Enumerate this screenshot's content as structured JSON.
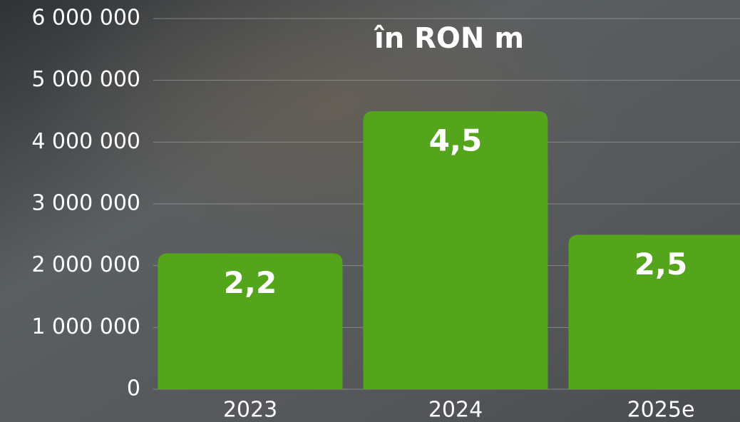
{
  "chart_data": {
    "type": "bar",
    "title": "în RON m",
    "categories": [
      "2023",
      "2024",
      "2025e"
    ],
    "values": [
      2200000,
      4500000,
      2500000
    ],
    "value_labels": [
      "2,2",
      "4,5",
      "2,5"
    ],
    "color": "#55a51c",
    "ylim": [
      0,
      6000000
    ],
    "yticks": [
      0,
      {
        "value": 1000000,
        "label": "1 000 000"
      },
      {
        "value": 2000000,
        "label": "2 000 000"
      },
      {
        "value": 3000000,
        "label": "3 000 000"
      },
      {
        "value": 4000000,
        "label": "4 000 000"
      },
      {
        "value": 5000000,
        "label": "5 000 000"
      },
      {
        "value": 6000000,
        "label": "6 000 000"
      }
    ],
    "grid": true
  }
}
